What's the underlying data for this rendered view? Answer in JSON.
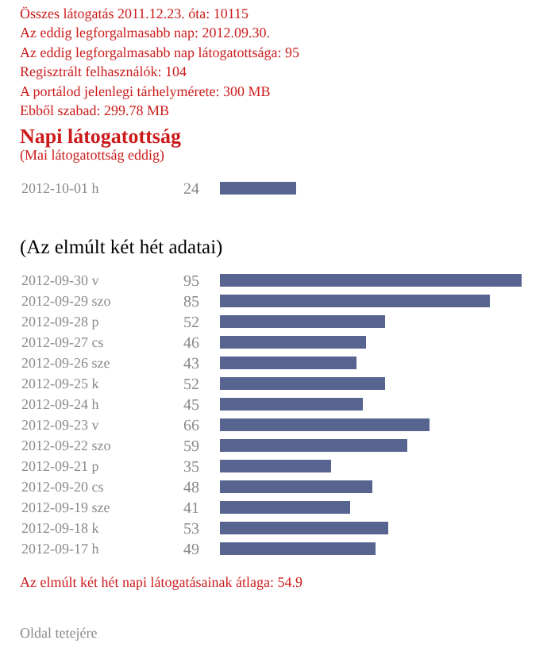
{
  "chart_data": [
    {
      "type": "other",
      "annotations": [
        "Összes látogatás 2011.12.23. óta: 10115",
        "Az eddig legforgalmasabb nap: 2012.09.30.",
        "Az eddig legforgalmasabb nap látogatottsága: 95",
        "Regisztrált felhasználók: 104",
        "A portálod jelenlegi tárhelymérete: 300 MB",
        "Ebből szabad: 299.78 MB"
      ]
    },
    {
      "type": "bar",
      "orientation": "horizontal",
      "title": "Napi látogatottság",
      "subtitle": "(Mai látogatottság eddig)",
      "categories": [
        "2012-10-01 h"
      ],
      "values": [
        24
      ],
      "color": "#56648f",
      "data_labels": true
    },
    {
      "type": "bar",
      "orientation": "horizontal",
      "title": "(Az elmúlt két hét adatai)",
      "categories": [
        "2012-09-30 v",
        "2012-09-29 szo",
        "2012-09-28 p",
        "2012-09-27 cs",
        "2012-09-26 sze",
        "2012-09-25 k",
        "2012-09-24 h",
        "2012-09-23 v",
        "2012-09-22 szo",
        "2012-09-21 p",
        "2012-09-20 cs",
        "2012-09-19 sze",
        "2012-09-18 k",
        "2012-09-17 h"
      ],
      "values": [
        95,
        85,
        52,
        46,
        43,
        52,
        45,
        66,
        59,
        35,
        48,
        41,
        53,
        49
      ],
      "color": "#56648f",
      "data_labels": true,
      "annotations": [
        "Az elmúlt két hét napi látogatásainak átlaga: 54.9",
        "Oldal tetejére"
      ]
    }
  ]
}
